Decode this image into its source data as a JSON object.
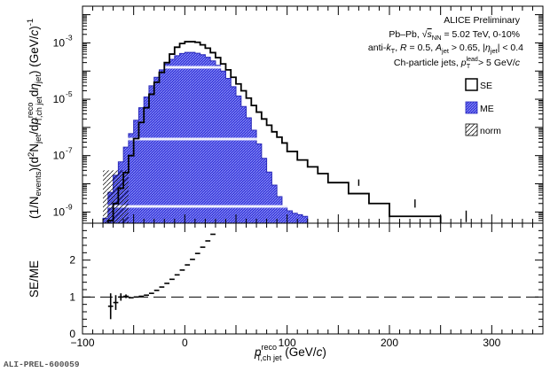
{
  "chart_data": [
    {
      "type": "step-histogram",
      "panel": "top",
      "yscale": "log",
      "x_range": [
        -100,
        350
      ],
      "ylim": [
        4e-10,
        0.02
      ],
      "x_ticks": [
        -100,
        0,
        100,
        200,
        300
      ],
      "x_tick_labels": [
        "-100",
        "0",
        "100",
        "200",
        "300"
      ],
      "y_ticks": [
        1e-09,
        1e-07,
        1e-05,
        0.001
      ],
      "y_tick_labels": [
        "10",
        "10",
        "10",
        "10"
      ],
      "y_tick_exponents": [
        "-9",
        "-7",
        "-5",
        "-3"
      ],
      "ylabel": {
        "p1": "(1/N",
        "p1s": "events",
        "p2": ")(d",
        "p2e": "2",
        "p3": "N",
        "p3s": "jet",
        "p4": "/d",
        "p5": "p",
        "p5s": "T,ch jet",
        "p5e": "reco",
        "p6": "d",
        "p7": "η",
        "p7s": "jet",
        "p8": ") (GeV/",
        "p9": "c",
        "p10": ")",
        "p10e": "-1"
      },
      "annotations": {
        "l1": "ALICE Preliminary",
        "l2a": "Pb–Pb, ",
        "l2b": "√",
        "l2c": "s",
        "l2cs": "NN",
        "l2d": " = 5.02 TeV, 0-10%",
        "l3a": "anti-",
        "l3b": "k",
        "l3bs": "T",
        "l3c": ", ",
        "l3d": "R",
        "l3e": " = 0.5, ",
        "l3f": "A",
        "l3fs": "jet",
        "l3g": " > 0.65, |",
        "l3h": "η",
        "l3hs": "jet",
        "l3i": "| < 0.4",
        "l4a": "Ch-particle jets, ",
        "l4b": "p",
        "l4bs": "T",
        "l4be": "lead",
        "l4c": " > 5 GeV/",
        "l4d": "c"
      },
      "legend": {
        "placement": "right",
        "items": [
          "SE",
          "ME",
          "norm"
        ]
      },
      "series": [
        {
          "name": "SE",
          "style": "step",
          "color": "#000000",
          "x_edges": [
            -75,
            -70,
            -65,
            -60,
            -55,
            -50,
            -45,
            -40,
            -35,
            -30,
            -25,
            -20,
            -15,
            -10,
            -5,
            0,
            5,
            10,
            15,
            20,
            25,
            30,
            35,
            40,
            45,
            50,
            55,
            60,
            65,
            70,
            75,
            80,
            85,
            90,
            95,
            100,
            110,
            120,
            130,
            140,
            160,
            180,
            200,
            250,
            300
          ],
          "values": [
            5e-10,
            2e-09,
            7e-09,
            2.5e-08,
            1e-07,
            4e-07,
            1.5e-06,
            5e-06,
            1.5e-05,
            4e-05,
            9e-05,
            0.0002,
            0.0004,
            0.0007,
            0.00095,
            0.0011,
            0.0011,
            0.00105,
            0.00085,
            0.00065,
            0.00045,
            0.0003,
            0.00018,
            0.00011,
            6e-05,
            3.5e-05,
            2e-05,
            1.1e-05,
            6e-06,
            3.5e-06,
            2e-06,
            1.2e-06,
            7e-07,
            4.5e-07,
            2.8e-07,
            1.4e-07,
            7e-08,
            4e-08,
            2.3e-08,
            1.1e-08,
            4.5e-09,
            2e-09,
            7e-10,
            3.5e-10
          ]
        },
        {
          "name": "ME",
          "style": "filled-step",
          "color": "#3a3ae0",
          "x_edges": [
            -80,
            -75,
            -70,
            -65,
            -60,
            -55,
            -50,
            -45,
            -40,
            -35,
            -30,
            -25,
            -20,
            -15,
            -10,
            -5,
            0,
            5,
            10,
            15,
            20,
            25,
            30,
            35,
            40,
            45,
            50,
            55,
            60,
            65,
            70,
            75,
            80,
            85,
            90,
            95,
            100,
            105,
            110,
            115,
            120
          ],
          "values": [
            6e-10,
            5e-09,
            2e-08,
            6e-08,
            2e-07,
            6e-07,
            1.8e-06,
            5e-06,
            1.2e-05,
            3e-05,
            6e-05,
            0.00011,
            0.00018,
            0.00026,
            0.00035,
            0.00042,
            0.00046,
            0.00046,
            0.00043,
            0.00038,
            0.00031,
            0.00023,
            0.00016,
            0.0001,
            5.5e-05,
            2.8e-05,
            1.3e-05,
            5.5e-06,
            2.2e-06,
            8e-07,
            2.6e-07,
            8e-08,
            2.6e-08,
            9e-09,
            3.5e-09,
            1.6e-09,
            1.1e-09,
            9e-10,
            8e-10,
            7e-10
          ]
        },
        {
          "name": "norm",
          "style": "hatched",
          "color": "#000000",
          "x_range": [
            -80,
            -55
          ]
        }
      ]
    },
    {
      "type": "scatter",
      "panel": "bottom",
      "x_range": [
        -100,
        350
      ],
      "ylim": [
        0,
        3
      ],
      "x_ticks": [
        -100,
        0,
        100,
        200,
        300
      ],
      "x_tick_labels": [
        "−100",
        "0",
        "100",
        "200",
        "300"
      ],
      "y_ticks": [
        0,
        1,
        2
      ],
      "y_tick_labels": [
        "0",
        "1",
        "2"
      ],
      "ylabel": "SE/ME",
      "xlabel": {
        "a": "p",
        "as": "T,ch jet",
        "ae": "reco",
        "b": " (GeV/",
        "c": "c",
        "d": ")"
      },
      "reference_line": 1,
      "points": [
        {
          "x": -72.5,
          "y": 0.75,
          "err": 0.35
        },
        {
          "x": -67.5,
          "y": 0.85,
          "err": 0.2
        },
        {
          "x": -62.5,
          "y": 1.0,
          "err": 0.1
        },
        {
          "x": -57.5,
          "y": 1.02,
          "err": 0.05
        },
        {
          "x": -52.5,
          "y": 0.98
        },
        {
          "x": -47.5,
          "y": 1.0
        },
        {
          "x": -42.5,
          "y": 1.02
        },
        {
          "x": -37.5,
          "y": 1.05
        },
        {
          "x": -32.5,
          "y": 1.1
        },
        {
          "x": -27.5,
          "y": 1.18
        },
        {
          "x": -22.5,
          "y": 1.27
        },
        {
          "x": -17.5,
          "y": 1.37
        },
        {
          "x": -12.5,
          "y": 1.48
        },
        {
          "x": -7.5,
          "y": 1.6
        },
        {
          "x": -2.5,
          "y": 1.73
        },
        {
          "x": 2.5,
          "y": 1.87
        },
        {
          "x": 7.5,
          "y": 2.02
        },
        {
          "x": 12.5,
          "y": 2.18
        },
        {
          "x": 17.5,
          "y": 2.35
        },
        {
          "x": 22.5,
          "y": 2.52
        },
        {
          "x": 27.5,
          "y": 2.7
        }
      ]
    }
  ],
  "watermark": "ALI-PREL-600059"
}
